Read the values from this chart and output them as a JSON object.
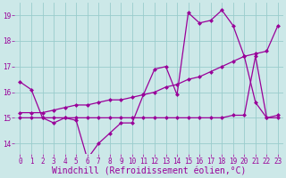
{
  "bg_color": "#cce8e8",
  "line_color": "#990099",
  "grid_color": "#99cccc",
  "xlabel": "Windchill (Refroidissement éolien,°C)",
  "xlabel_fontsize": 7,
  "yticks": [
    14,
    15,
    16,
    17,
    18,
    19
  ],
  "xticks": [
    0,
    1,
    2,
    3,
    4,
    5,
    6,
    7,
    8,
    9,
    10,
    11,
    12,
    13,
    14,
    15,
    16,
    17,
    18,
    19,
    20,
    21,
    22,
    23
  ],
  "xlim": [
    -0.5,
    23.5
  ],
  "ylim": [
    13.6,
    19.5
  ],
  "series1_x": [
    0,
    1,
    2,
    3,
    4,
    5,
    6,
    7,
    8,
    9,
    10,
    11,
    12,
    13,
    14,
    15,
    16,
    17,
    18,
    19,
    20,
    21,
    22,
    23
  ],
  "series1_y": [
    16.4,
    16.1,
    15.0,
    14.8,
    15.0,
    14.9,
    13.4,
    14.0,
    14.4,
    14.8,
    14.8,
    15.9,
    16.9,
    17.0,
    15.9,
    19.1,
    18.7,
    18.8,
    19.2,
    18.6,
    17.4,
    15.6,
    15.0,
    15.1
  ],
  "series2_x": [
    0,
    1,
    2,
    3,
    4,
    5,
    6,
    7,
    8,
    9,
    10,
    11,
    12,
    13,
    14,
    15,
    16,
    17,
    18,
    19,
    20,
    21,
    22,
    23
  ],
  "series2_y": [
    15.2,
    15.2,
    15.2,
    15.3,
    15.4,
    15.5,
    15.5,
    15.6,
    15.7,
    15.7,
    15.8,
    15.9,
    16.0,
    16.2,
    16.3,
    16.5,
    16.6,
    16.8,
    17.0,
    17.2,
    17.4,
    17.5,
    17.6,
    18.6
  ],
  "series3_x": [
    0,
    1,
    2,
    3,
    4,
    5,
    6,
    7,
    8,
    9,
    10,
    11,
    12,
    13,
    14,
    15,
    16,
    17,
    18,
    19,
    20,
    21,
    22,
    23
  ],
  "series3_y": [
    15.0,
    15.0,
    15.0,
    15.0,
    15.0,
    15.0,
    15.0,
    15.0,
    15.0,
    15.0,
    15.0,
    15.0,
    15.0,
    15.0,
    15.0,
    15.0,
    15.0,
    15.0,
    15.0,
    15.1,
    15.1,
    17.4,
    15.0,
    15.0
  ]
}
